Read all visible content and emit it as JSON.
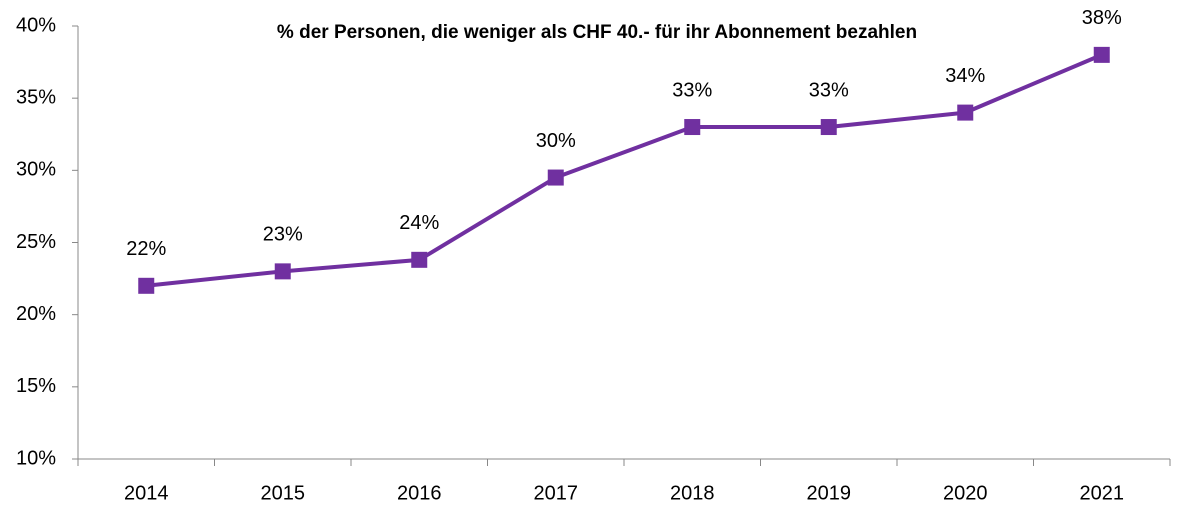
{
  "chart_data": {
    "type": "line",
    "title": "% der Personen, die weniger als CHF 40.- für ihr Abonnement bezahlen",
    "categories": [
      "2014",
      "2015",
      "2016",
      "2017",
      "2018",
      "2019",
      "2020",
      "2021"
    ],
    "values": [
      22,
      23,
      23.8,
      29.5,
      33,
      33,
      34,
      38
    ],
    "value_labels": [
      "22%",
      "23%",
      "24%",
      "30%",
      "33%",
      "33%",
      "34%",
      "38%"
    ],
    "color": "#7030a0",
    "ylim": [
      10,
      40
    ],
    "yticks": [
      {
        "value": 10,
        "label": "10%"
      },
      {
        "value": 15,
        "label": "15%"
      },
      {
        "value": 20,
        "label": "20%"
      },
      {
        "value": 25,
        "label": "25%"
      },
      {
        "value": 30,
        "label": "30%"
      },
      {
        "value": 35,
        "label": "35%"
      },
      {
        "value": 40,
        "label": "40%"
      }
    ],
    "grid": false
  }
}
